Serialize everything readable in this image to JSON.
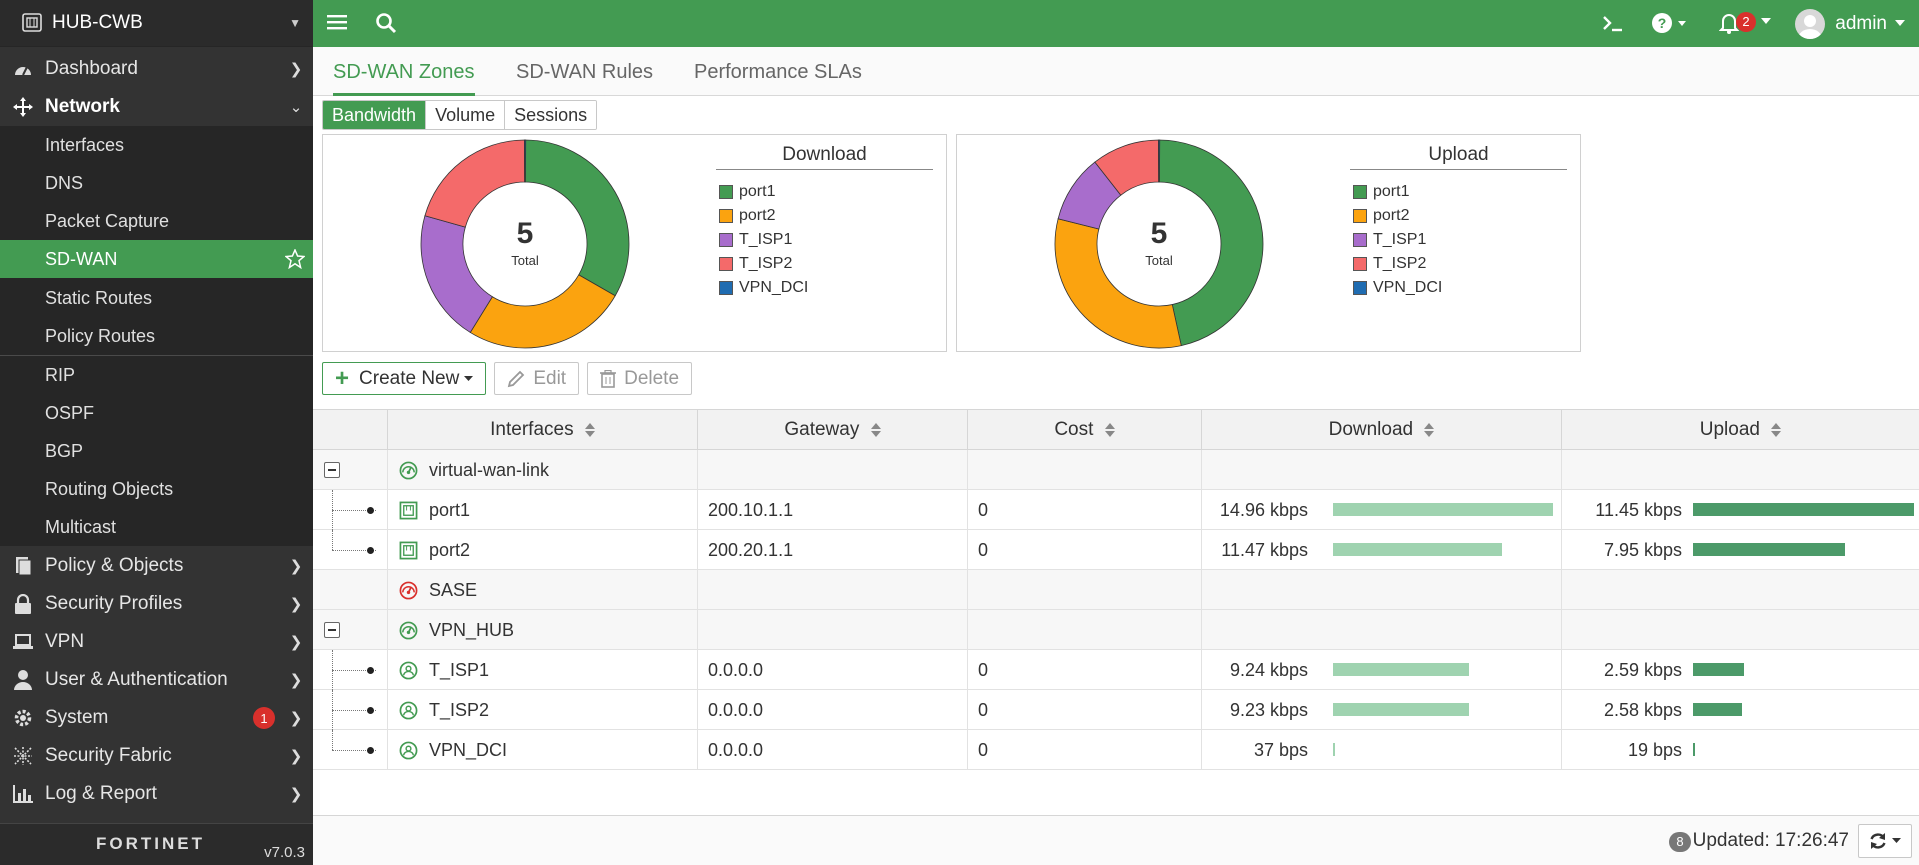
{
  "sidebar": {
    "device_name": "HUB-CWB",
    "version": "v7.0.3",
    "logo_text": "FORTINET",
    "items": [
      {
        "label": "Dashboard"
      },
      {
        "label": "Network"
      },
      {
        "label": "Policy & Objects"
      },
      {
        "label": "Security Profiles"
      },
      {
        "label": "VPN"
      },
      {
        "label": "User & Authentication"
      },
      {
        "label": "System",
        "badge": "1"
      },
      {
        "label": "Security Fabric"
      },
      {
        "label": "Log & Report"
      }
    ],
    "network_sub": [
      {
        "label": "Interfaces"
      },
      {
        "label": "DNS"
      },
      {
        "label": "Packet Capture"
      },
      {
        "label": "SD-WAN"
      },
      {
        "label": "Static Routes"
      },
      {
        "label": "Policy Routes"
      },
      {
        "label": "RIP"
      },
      {
        "label": "OSPF"
      },
      {
        "label": "BGP"
      },
      {
        "label": "Routing Objects"
      },
      {
        "label": "Multicast"
      }
    ]
  },
  "topbar": {
    "notifications": "2",
    "user": "admin"
  },
  "tabs": [
    "SD-WAN Zones",
    "SD-WAN Rules",
    "Performance SLAs"
  ],
  "view_toggle": [
    "Bandwidth",
    "Volume",
    "Sessions"
  ],
  "colors": {
    "port1": "#439b52",
    "port2": "#fba30f",
    "T_ISP1": "#a86dcc",
    "T_ISP2": "#f46a6a",
    "VPN_DCI": "#1f6cb1",
    "accent": "#439b52"
  },
  "chart_data": [
    {
      "type": "pie",
      "title": "Download",
      "center_value": "5",
      "center_label": "Total",
      "categories": [
        "port1",
        "port2",
        "T_ISP1",
        "T_ISP2",
        "VPN_DCI"
      ],
      "values": [
        14.96,
        11.47,
        9.24,
        9.23,
        0.037
      ],
      "unit": "kbps"
    },
    {
      "type": "pie",
      "title": "Upload",
      "center_value": "5",
      "center_label": "Total",
      "categories": [
        "port1",
        "port2",
        "T_ISP1",
        "T_ISP2",
        "VPN_DCI"
      ],
      "values": [
        11.45,
        7.95,
        2.59,
        2.58,
        0.019
      ],
      "unit": "kbps"
    }
  ],
  "toolbar": {
    "create_label": "Create New",
    "edit_label": "Edit",
    "delete_label": "Delete"
  },
  "table": {
    "headers": {
      "interfaces": "Interfaces",
      "gateway": "Gateway",
      "cost": "Cost",
      "download": "Download",
      "upload": "Upload"
    },
    "rows": [
      {
        "kind": "zone",
        "name": "virtual-wan-link",
        "gateway": "",
        "cost": "",
        "download": "",
        "upload": ""
      },
      {
        "kind": "member",
        "name": "port1",
        "gateway": "200.10.1.1",
        "cost": "0",
        "download": "14.96 kbps",
        "upload": "11.45 kbps",
        "dl_frac": 1.0,
        "ul_frac": 1.0
      },
      {
        "kind": "member",
        "name": "port2",
        "gateway": "200.20.1.1",
        "cost": "0",
        "download": "11.47 kbps",
        "upload": "7.95 kbps",
        "dl_frac": 0.77,
        "ul_frac": 0.69
      },
      {
        "kind": "zone-empty",
        "name": "SASE",
        "gateway": "",
        "cost": "",
        "download": "",
        "upload": ""
      },
      {
        "kind": "zone",
        "name": "VPN_HUB",
        "gateway": "",
        "cost": "",
        "download": "",
        "upload": ""
      },
      {
        "kind": "vpn",
        "name": "T_ISP1",
        "gateway": "0.0.0.0",
        "cost": "0",
        "download": "9.24 kbps",
        "upload": "2.59 kbps",
        "dl_frac": 0.62,
        "ul_frac": 0.23
      },
      {
        "kind": "vpn",
        "name": "T_ISP2",
        "gateway": "0.0.0.0",
        "cost": "0",
        "download": "9.23 kbps",
        "upload": "2.58 kbps",
        "dl_frac": 0.62,
        "ul_frac": 0.22
      },
      {
        "kind": "vpn",
        "name": "VPN_DCI",
        "gateway": "0.0.0.0",
        "cost": "0",
        "download": "37 bps",
        "upload": "19 bps",
        "dl_frac": 0.003,
        "ul_frac": 0.002
      }
    ]
  },
  "status": {
    "count": "8",
    "updated": "Updated: 17:26:47"
  }
}
